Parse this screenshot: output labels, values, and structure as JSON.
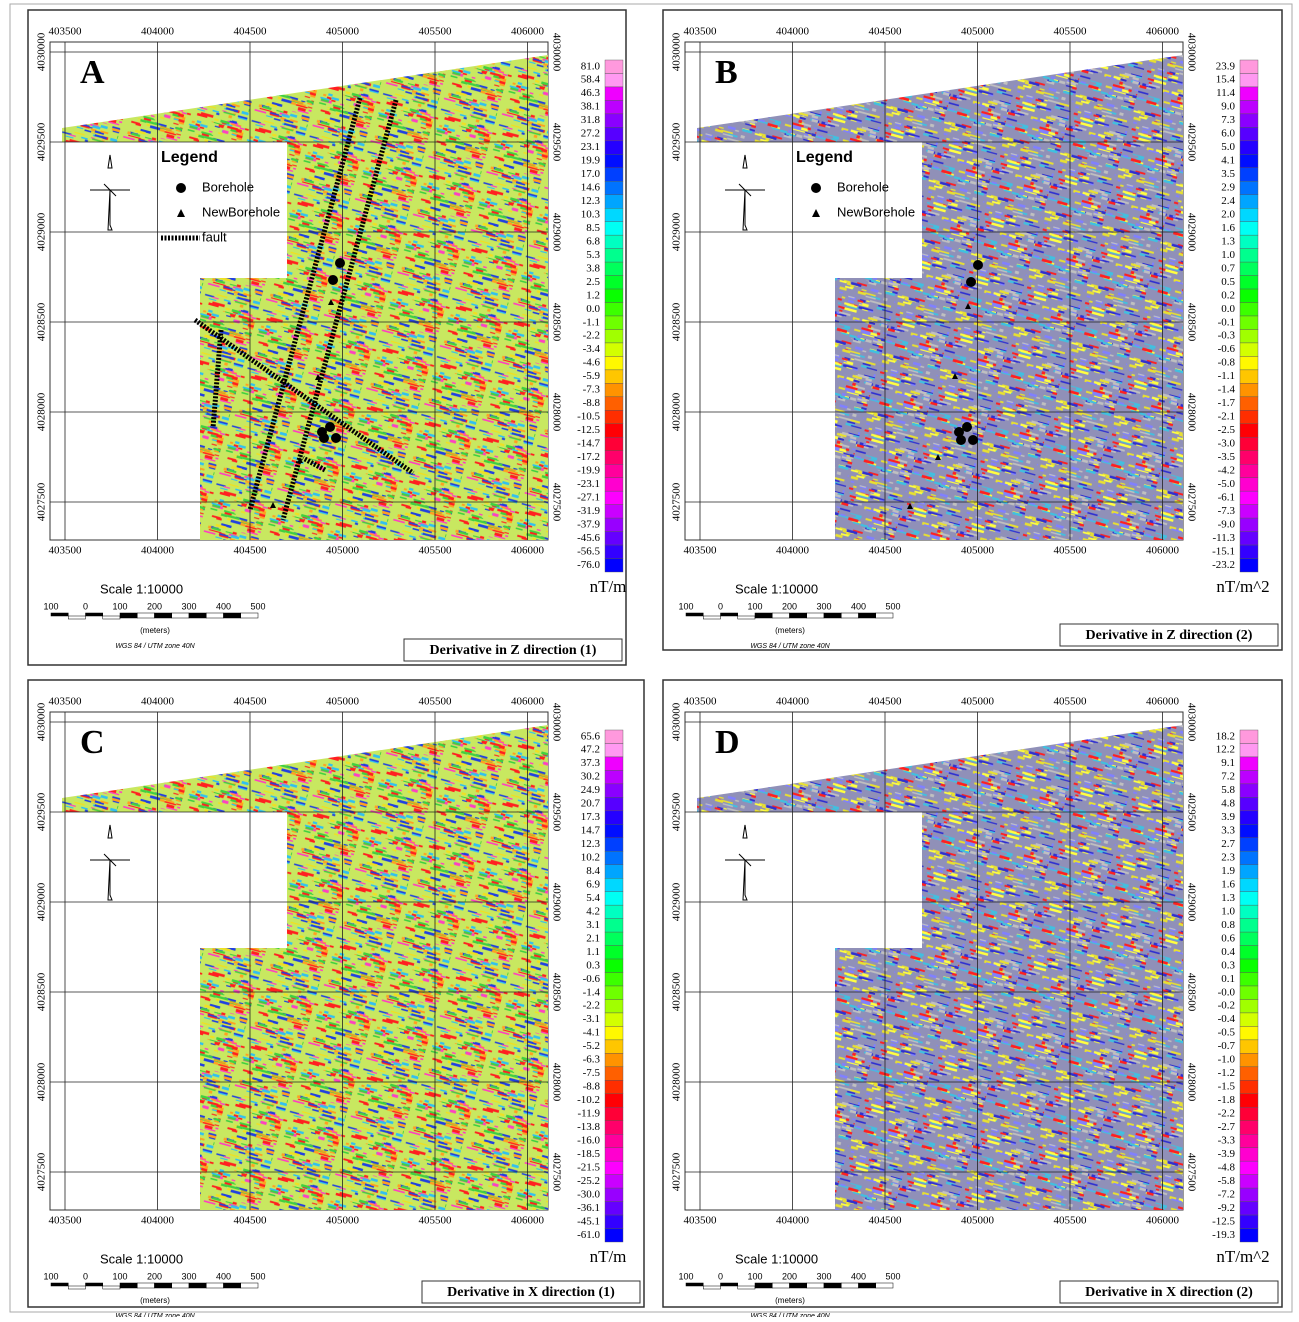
{
  "x_ticks": [
    "403500",
    "404000",
    "404500",
    "405000",
    "405500",
    "406000"
  ],
  "y_ticks": [
    "4030000",
    "4029500",
    "4029000",
    "4028500",
    "4028000",
    "4027500"
  ],
  "scale": {
    "title": "Scale 1:10000",
    "bar_labels": [
      "100",
      "0",
      "100",
      "200",
      "300",
      "400",
      "500"
    ],
    "unit": "(meters)",
    "projection": "WGS 84 / UTM zone 40N"
  },
  "panels": [
    {
      "label": "A",
      "title": "Derivative in Z direction (1)",
      "unit": "nT/m",
      "colorbar": [
        "81.0",
        "58.4",
        "46.3",
        "38.1",
        "31.8",
        "27.2",
        "23.1",
        "19.9",
        "17.0",
        "14.6",
        "12.3",
        "10.3",
        "8.5",
        "6.8",
        "5.3",
        "3.8",
        "2.5",
        "1.2",
        "0.0",
        "-1.1",
        "-2.2",
        "-3.4",
        "-4.6",
        "-5.9",
        "-7.3",
        "-8.8",
        "-10.5",
        "-12.5",
        "-14.7",
        "-17.2",
        "-19.9",
        "-23.1",
        "-27.1",
        "-31.9",
        "-37.9",
        "-45.6",
        "-56.5",
        "-76.0"
      ],
      "legend": {
        "title": "Legend",
        "items": [
          "Borehole",
          "NewBorehole",
          "fault"
        ]
      }
    },
    {
      "label": "B",
      "title": "Derivative in Z direction (2)",
      "unit": "nT/m^2",
      "colorbar": [
        "23.9",
        "15.4",
        "11.4",
        "9.0",
        "7.3",
        "6.0",
        "5.0",
        "4.1",
        "3.5",
        "2.9",
        "2.4",
        "2.0",
        "1.6",
        "1.3",
        "1.0",
        "0.7",
        "0.5",
        "0.2",
        "0.0",
        "-0.1",
        "-0.3",
        "-0.6",
        "-0.8",
        "-1.1",
        "-1.4",
        "-1.7",
        "-2.1",
        "-2.5",
        "-3.0",
        "-3.5",
        "-4.2",
        "-5.0",
        "-6.1",
        "-7.3",
        "-9.0",
        "-11.3",
        "-15.1",
        "-23.2"
      ],
      "legend": {
        "title": "Legend",
        "items": [
          "Borehole",
          "NewBorehole"
        ]
      }
    },
    {
      "label": "C",
      "title": "Derivative in X direction (1)",
      "unit": "nT/m",
      "colorbar": [
        "65.6",
        "47.2",
        "37.3",
        "30.2",
        "24.9",
        "20.7",
        "17.3",
        "14.7",
        "12.3",
        "10.2",
        "8.4",
        "6.9",
        "5.4",
        "4.2",
        "3.1",
        "2.1",
        "1.1",
        "0.3",
        "-0.6",
        "-1.4",
        "-2.2",
        "-3.1",
        "-4.1",
        "-5.2",
        "-6.3",
        "-7.5",
        "-8.8",
        "-10.2",
        "-11.9",
        "-13.8",
        "-16.0",
        "-18.5",
        "-21.5",
        "-25.2",
        "-30.0",
        "-36.1",
        "-45.1",
        "-61.0"
      ]
    },
    {
      "label": "D",
      "title": "Derivative in X direction (2)",
      "unit": "nT/m^2",
      "colorbar": [
        "18.2",
        "12.2",
        "9.1",
        "7.2",
        "5.8",
        "4.8",
        "3.9",
        "3.3",
        "2.7",
        "2.3",
        "1.9",
        "1.6",
        "1.3",
        "1.0",
        "0.8",
        "0.6",
        "0.4",
        "0.3",
        "0.1",
        "-0.0",
        "-0.2",
        "-0.4",
        "-0.5",
        "-0.7",
        "-1.0",
        "-1.2",
        "-1.5",
        "-1.8",
        "-2.2",
        "-2.7",
        "-3.3",
        "-3.9",
        "-4.8",
        "-5.8",
        "-7.2",
        "-9.2",
        "-12.5",
        "-19.3"
      ]
    }
  ]
}
